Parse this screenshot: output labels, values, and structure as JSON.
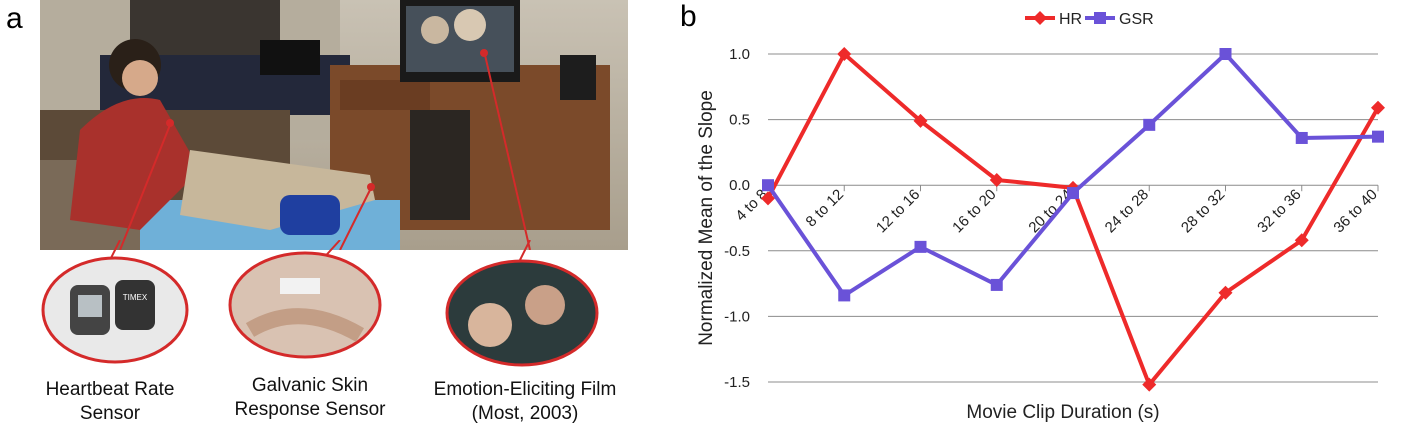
{
  "panel_labels": {
    "a": "a",
    "b": "b"
  },
  "captions": {
    "heartbeat": [
      "Heartbeat Rate",
      "Sensor"
    ],
    "gsr": [
      "Galvanic Skin",
      "Response Sensor"
    ],
    "film": [
      "Emotion-Eliciting Film",
      "(Most, 2003)"
    ]
  },
  "device_text": {
    "brand": "TIMEX"
  },
  "colors": {
    "hr": "#ee2a2a",
    "gsr": "#6a52d8",
    "accent_red": "#d42a2a"
  },
  "chart_data": {
    "type": "line",
    "categories": [
      "4 to 8",
      "8 to 12",
      "12 to 16",
      "16 to 20",
      "20 to 24",
      "24 to 28",
      "28 to 32",
      "32 to 36",
      "36 to 40"
    ],
    "series": [
      {
        "name": "HR",
        "values": [
          -0.1,
          1.0,
          0.49,
          0.04,
          -0.02,
          -1.52,
          -0.82,
          -0.42,
          0.59
        ]
      },
      {
        "name": "GSR",
        "values": [
          0.0,
          -0.84,
          -0.47,
          -0.76,
          -0.06,
          0.46,
          1.0,
          0.36,
          0.37
        ]
      }
    ],
    "title": "",
    "xlabel": "Movie Clip Duration (s)",
    "ylabel": "Normalized Mean of the Slope",
    "ylim": [
      -1.5,
      1.0
    ],
    "yticks": [
      "1.0",
      "0.5",
      "0.0",
      "-0.5",
      "-1.0",
      "-1.5"
    ],
    "ytick_values": [
      1.0,
      0.5,
      0.0,
      -0.5,
      -1.0,
      -1.5
    ],
    "grid": "horizontal",
    "legend": "top-center"
  }
}
